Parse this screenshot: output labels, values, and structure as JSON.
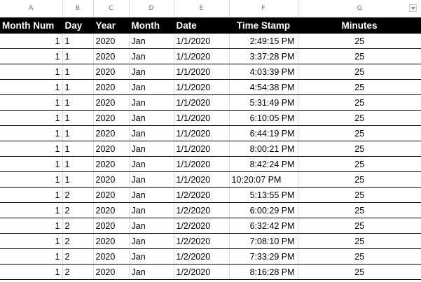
{
  "column_letters": [
    "A",
    "B",
    "C",
    "D",
    "E",
    "F",
    "G"
  ],
  "headers": [
    "Month Num",
    "Day",
    "Year",
    "Month",
    "Date",
    "Time Stamp",
    "Minutes"
  ],
  "rows": [
    {
      "month_num": "1",
      "day": "1",
      "year": "2020",
      "month": "Jan",
      "date": "1/1/2020",
      "time_stamp": "2:49:15 PM",
      "minutes": "25"
    },
    {
      "month_num": "1",
      "day": "1",
      "year": "2020",
      "month": "Jan",
      "date": "1/1/2020",
      "time_stamp": "3:37:28 PM",
      "minutes": "25"
    },
    {
      "month_num": "1",
      "day": "1",
      "year": "2020",
      "month": "Jan",
      "date": "1/1/2020",
      "time_stamp": "4:03:39 PM",
      "minutes": "25"
    },
    {
      "month_num": "1",
      "day": "1",
      "year": "2020",
      "month": "Jan",
      "date": "1/1/2020",
      "time_stamp": "4:54:38 PM",
      "minutes": "25"
    },
    {
      "month_num": "1",
      "day": "1",
      "year": "2020",
      "month": "Jan",
      "date": "1/1/2020",
      "time_stamp": "5:31:49 PM",
      "minutes": "25"
    },
    {
      "month_num": "1",
      "day": "1",
      "year": "2020",
      "month": "Jan",
      "date": "1/1/2020",
      "time_stamp": "6:10:05 PM",
      "minutes": "25"
    },
    {
      "month_num": "1",
      "day": "1",
      "year": "2020",
      "month": "Jan",
      "date": "1/1/2020",
      "time_stamp": "6:44:19 PM",
      "minutes": "25"
    },
    {
      "month_num": "1",
      "day": "1",
      "year": "2020",
      "month": "Jan",
      "date": "1/1/2020",
      "time_stamp": "8:00:21 PM",
      "minutes": "25"
    },
    {
      "month_num": "1",
      "day": "1",
      "year": "2020",
      "month": "Jan",
      "date": "1/1/2020",
      "time_stamp": "8:42:24 PM",
      "minutes": "25"
    },
    {
      "month_num": "1",
      "day": "1",
      "year": "2020",
      "month": "Jan",
      "date": "1/1/2020",
      "time_stamp": "10:20:07 PM",
      "minutes": "25",
      "ts_left": true
    },
    {
      "month_num": "1",
      "day": "2",
      "year": "2020",
      "month": "Jan",
      "date": "1/2/2020",
      "time_stamp": "5:13:55 PM",
      "minutes": "25"
    },
    {
      "month_num": "1",
      "day": "2",
      "year": "2020",
      "month": "Jan",
      "date": "1/2/2020",
      "time_stamp": "6:00:29 PM",
      "minutes": "25"
    },
    {
      "month_num": "1",
      "day": "2",
      "year": "2020",
      "month": "Jan",
      "date": "1/2/2020",
      "time_stamp": "6:32:42 PM",
      "minutes": "25"
    },
    {
      "month_num": "1",
      "day": "2",
      "year": "2020",
      "month": "Jan",
      "date": "1/2/2020",
      "time_stamp": "7:08:10 PM",
      "minutes": "25"
    },
    {
      "month_num": "1",
      "day": "2",
      "year": "2020",
      "month": "Jan",
      "date": "1/2/2020",
      "time_stamp": "7:33:29 PM",
      "minutes": "25"
    },
    {
      "month_num": "1",
      "day": "2",
      "year": "2020",
      "month": "Jan",
      "date": "1/2/2020",
      "time_stamp": "8:16:28 PM",
      "minutes": "25"
    }
  ],
  "colors": {
    "header_bg": "#000000",
    "header_text": "#ffffff",
    "gridline": "#dcdcdc",
    "row_border": "#000000"
  },
  "icons": {
    "filter": "filter-dropdown-icon"
  }
}
